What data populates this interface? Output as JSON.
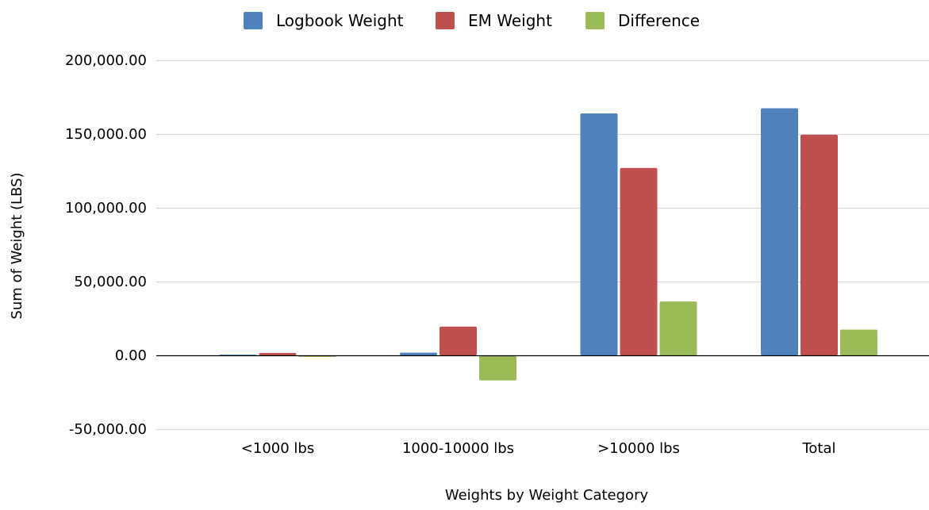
{
  "chart_data": {
    "type": "bar",
    "title": "",
    "xlabel": "Weights by Weight Category",
    "ylabel": "Sum of Weight (LBS)",
    "categories": [
      "<1000 lbs",
      "1000-10000 lbs",
      ">10000 lbs",
      "Total"
    ],
    "series": [
      {
        "name": "Logbook Weight",
        "color": "#4F81BD",
        "values": [
          500,
          1800,
          164000,
          167500
        ]
      },
      {
        "name": "EM Weight",
        "color": "#C0504D",
        "values": [
          1600,
          19500,
          127000,
          149500
        ]
      },
      {
        "name": "Difference",
        "color": "#9BBB59",
        "values": [
          -1100,
          -17000,
          36500,
          17500
        ]
      }
    ],
    "ylim": [
      -50000,
      200000
    ],
    "yticks": [
      -50000,
      0,
      50000,
      100000,
      150000,
      200000
    ],
    "ytick_labels": [
      "-50,000.00",
      "0.00",
      "50,000.00",
      "100,000.00",
      "150,000.00",
      "200,000.00"
    ],
    "grid": true,
    "legend_position": "top"
  }
}
